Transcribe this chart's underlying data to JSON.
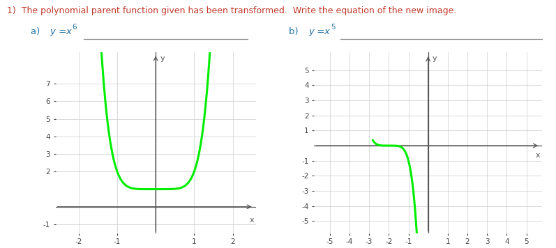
{
  "title": "1)  The polynomial parent function given has been transformed.  Write the equation of the new image.",
  "title_color": "#c0392b",
  "label_color": "#2471a3",
  "underline_color": "#888888",
  "curve_color": "#00ee00",
  "curve_linewidth": 2.2,
  "chart_a": {
    "func": "x**6 + 1",
    "xlim": [
      -2.6,
      2.6
    ],
    "ylim": [
      -1.5,
      8.8
    ],
    "xticks": [
      -2,
      -1,
      1,
      2
    ],
    "yticks": [
      -1,
      2,
      3,
      4,
      5,
      6,
      7
    ],
    "x_range": [
      -1.42,
      1.42
    ],
    "grid_color": "#cccccc",
    "axis_color": "#555555",
    "tick_color": "#444444",
    "tick_fontsize": 7.5
  },
  "chart_b": {
    "func": "-(x+2)**5",
    "xlim": [
      -5.8,
      5.8
    ],
    "ylim": [
      -5.8,
      6.2
    ],
    "xticks": [
      -5,
      -4,
      -3,
      -2,
      -1,
      1,
      2,
      3,
      4,
      5
    ],
    "yticks": [
      -5,
      -4,
      -3,
      -2,
      -1,
      1,
      2,
      3,
      4,
      5
    ],
    "x_range": [
      -2.82,
      -0.25
    ],
    "grid_color": "#cccccc",
    "axis_color": "#555555",
    "tick_color": "#444444",
    "tick_fontsize": 7.5
  }
}
